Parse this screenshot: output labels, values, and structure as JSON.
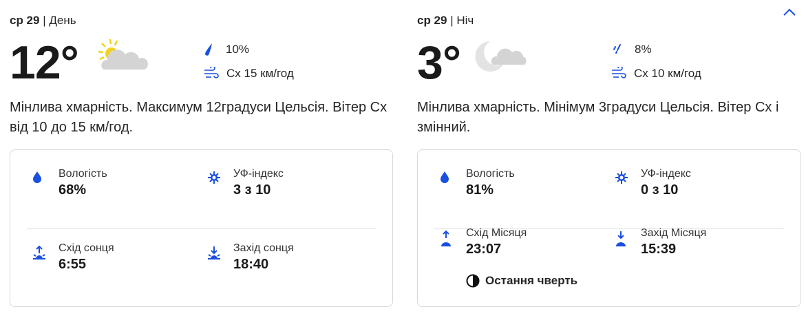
{
  "accent": "#1a4fe0",
  "day": {
    "date": "ср 29",
    "period": "День",
    "temperature": "12°",
    "icon": "partly-sunny-icon",
    "precipitation": "10%",
    "wind": "Сх 15 км/год",
    "description": "Мінлива хмарність. Максимум 12градуси Цельсія. Вітер Сх від 10 до 15 км/год.",
    "details": {
      "humidity_label": "Вологість",
      "humidity": "68%",
      "uv_label": "УФ-індекс",
      "uv": "3 з 10",
      "rise_label": "Схід сонця",
      "rise": "6:55",
      "set_label": "Захід сонця",
      "set": "18:40"
    }
  },
  "night": {
    "date": "ср 29",
    "period": "Ніч",
    "temperature": "3°",
    "icon": "partly-cloudy-night-icon",
    "precipitation": "8%",
    "wind": "Сх 10 км/год",
    "description": "Мінлива хмарність. Мінімум 3градуси Цельсія. Вітер Сх і змінний.",
    "details": {
      "humidity_label": "Вологість",
      "humidity": "81%",
      "uv_label": "УФ-індекс",
      "uv": "0 з 10",
      "rise_label": "Схід Місяця",
      "rise": "23:07",
      "set_label": "Захід Місяця",
      "set": "15:39",
      "moon_phase": "Остання чверть"
    }
  }
}
